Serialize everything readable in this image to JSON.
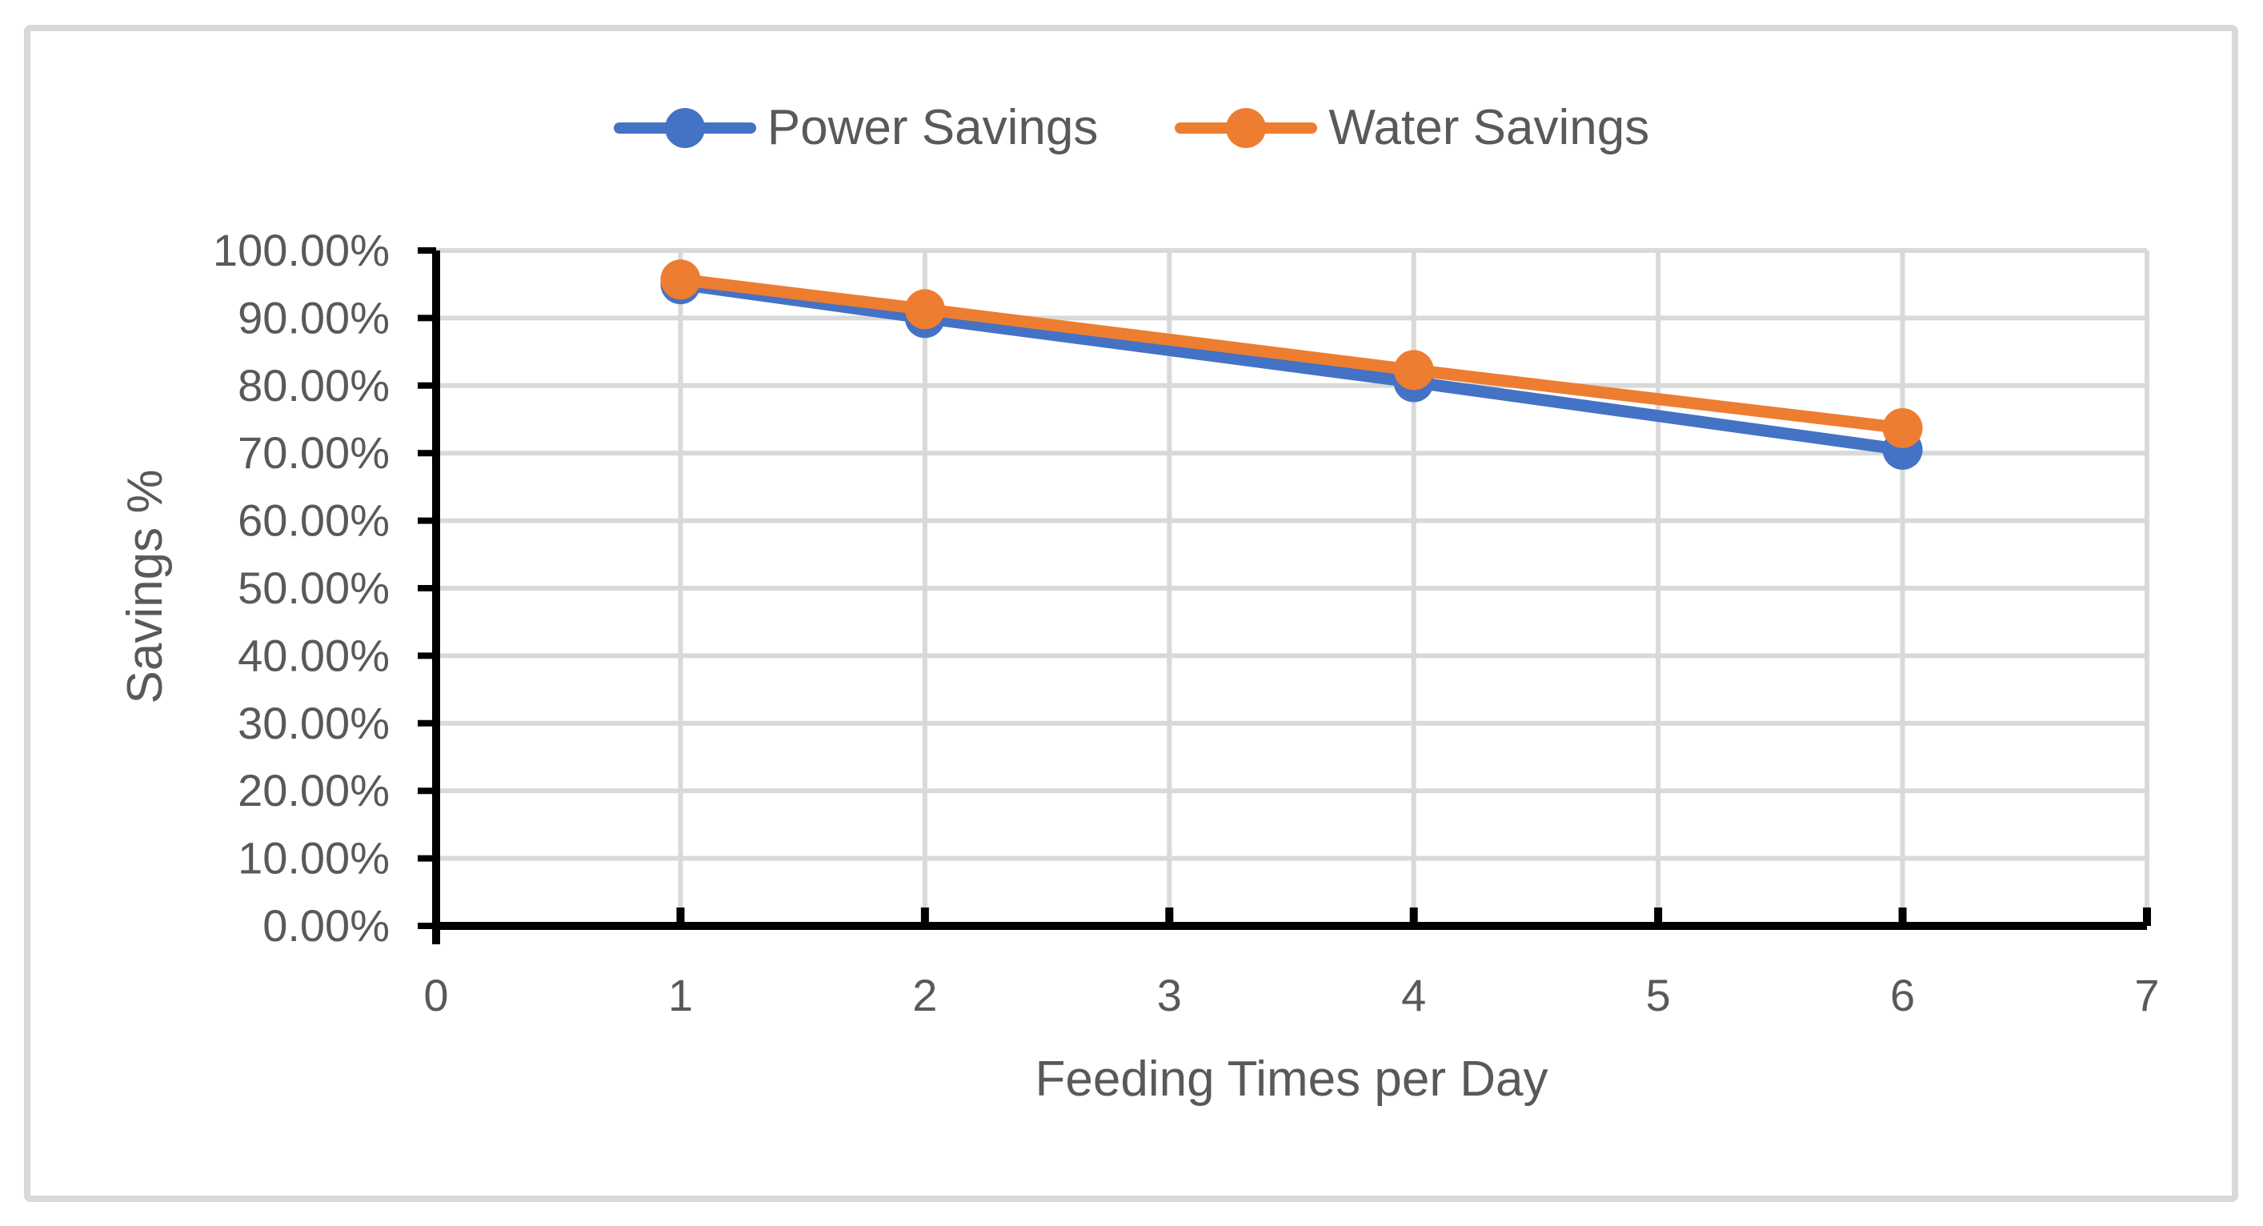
{
  "figure": {
    "background_color": "#ffffff",
    "border_color": "#d9d9d9"
  },
  "legend": {
    "position": "top-center",
    "items": [
      {
        "label": "Power Savings",
        "color": "#4472C4"
      },
      {
        "label": "Water Savings",
        "color": "#ED7D31"
      }
    ]
  },
  "chart_data": {
    "type": "line",
    "title": "",
    "xlabel": "Feeding Times per Day",
    "ylabel": "Savings %",
    "x": [
      1,
      2,
      4,
      6
    ],
    "series": [
      {
        "name": "Power Savings",
        "color": "#4472C4",
        "values": [
          95.0,
          90.0,
          80.5,
          70.5
        ]
      },
      {
        "name": "Water Savings",
        "color": "#ED7D31",
        "values": [
          95.7,
          91.3,
          82.3,
          73.7
        ]
      }
    ],
    "xlim": [
      0,
      7
    ],
    "ylim": [
      0,
      100
    ],
    "x_tick_labels": [
      "0",
      "1",
      "2",
      "3",
      "4",
      "5",
      "6",
      "7"
    ],
    "y_tick_labels": [
      "0.00%",
      "10.00%",
      "20.00%",
      "30.00%",
      "40.00%",
      "50.00%",
      "60.00%",
      "70.00%",
      "80.00%",
      "90.00%",
      "100.00%"
    ],
    "grid": true,
    "legend_position": "top",
    "marker": "circle",
    "style": {
      "text_color": "#595959",
      "grid_color": "#d9d9d9",
      "axis_color": "#000000",
      "tick_label_font_px": 56
    }
  }
}
